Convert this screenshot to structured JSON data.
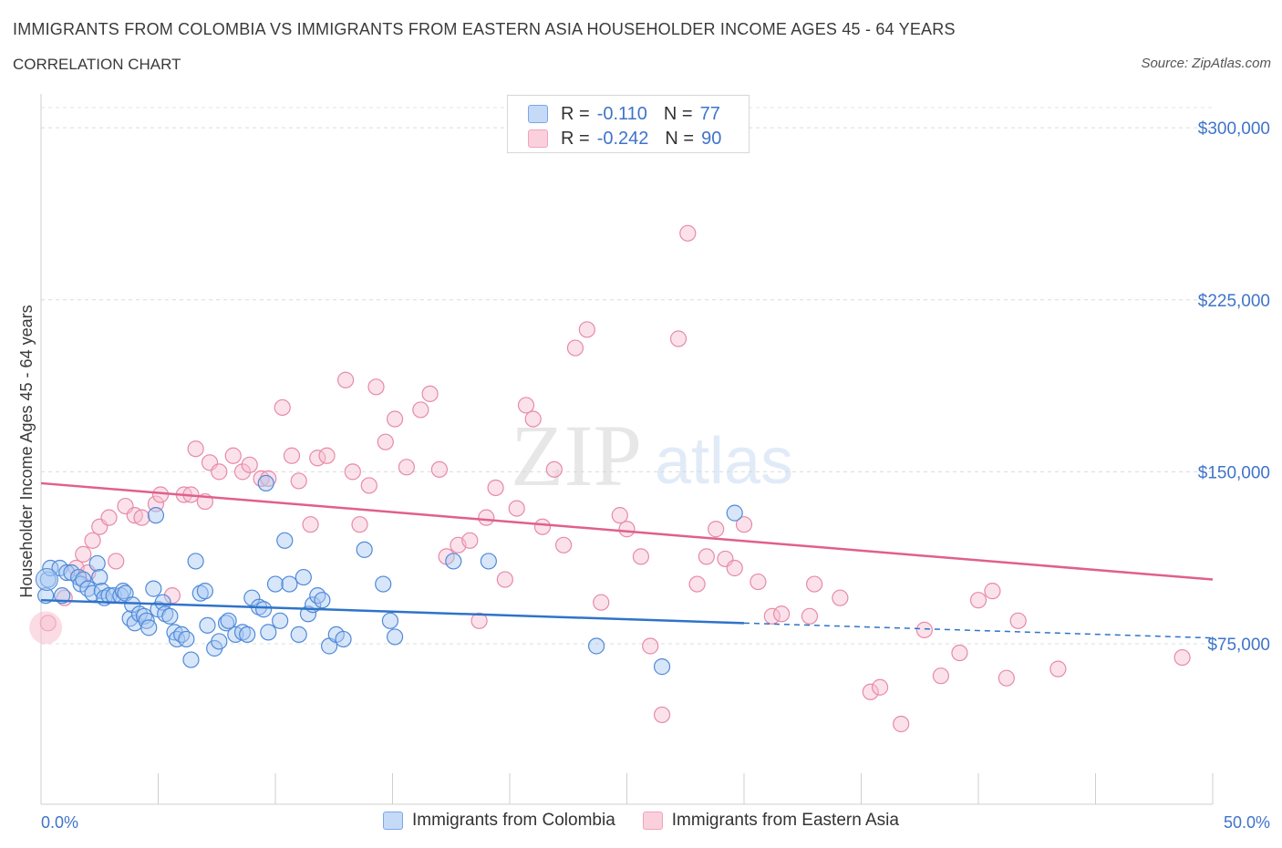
{
  "header": {
    "title": "IMMIGRANTS FROM COLOMBIA VS IMMIGRANTS FROM EASTERN ASIA HOUSEHOLDER INCOME AGES 45 - 64 YEARS",
    "subtitle": "CORRELATION CHART",
    "source": "Source: ZipAtlas.com"
  },
  "watermark": {
    "zip": "ZIP",
    "atlas": "atlas"
  },
  "legend": {
    "rows": [
      {
        "r_label": "R =",
        "r_value": "-0.110",
        "n_label": "N =",
        "n_value": "77",
        "color": "#7aa7e8"
      },
      {
        "r_label": "R =",
        "r_value": "-0.242",
        "n_label": "N =",
        "n_value": "90",
        "color": "#f0a3bb"
      }
    ]
  },
  "bottom_legend": {
    "items": [
      {
        "label": "Immigrants from Colombia"
      },
      {
        "label": "Immigrants from Eastern Asia"
      }
    ]
  },
  "chart_data": {
    "type": "scatter",
    "xlabel": "",
    "ylabel": "Householder Income Ages 45 - 64 years",
    "x_tick_labels": [
      "0.0%",
      "50.0%"
    ],
    "y_tick_labels": [
      "$75,000",
      "$150,000",
      "$225,000",
      "$300,000"
    ],
    "y_ticks": [
      75000,
      150000,
      225000,
      300000
    ],
    "xlim": [
      0,
      50
    ],
    "ylim": [
      5000,
      310000
    ],
    "grid": true,
    "colors": {
      "colombia": "#5b93e0",
      "eastern_asia": "#ec8aa8",
      "colombia_line": "#2f73c9",
      "eastern_asia_line": "#e0608a"
    },
    "series": [
      {
        "name": "Immigrants from Colombia",
        "trend": {
          "x0": 0,
          "y0": 94000,
          "x1": 30,
          "y1": 84000,
          "dashed_to_x": 50,
          "dashed_to_y": 77500
        },
        "points": [
          [
            0.3,
            103
          ],
          [
            0.4,
            108
          ],
          [
            0.8,
            108
          ],
          [
            0.9,
            96
          ],
          [
            1.1,
            106
          ],
          [
            1.3,
            106
          ],
          [
            1.6,
            104
          ],
          [
            1.7,
            101
          ],
          [
            1.8,
            103
          ],
          [
            2.0,
            99
          ],
          [
            2.2,
            97
          ],
          [
            2.4,
            110
          ],
          [
            2.5,
            104
          ],
          [
            2.6,
            98
          ],
          [
            2.7,
            95
          ],
          [
            2.9,
            96
          ],
          [
            3.1,
            96
          ],
          [
            3.4,
            96
          ],
          [
            3.5,
            98
          ],
          [
            3.6,
            97
          ],
          [
            3.8,
            86
          ],
          [
            3.9,
            92
          ],
          [
            4.0,
            84
          ],
          [
            4.2,
            88
          ],
          [
            4.4,
            87
          ],
          [
            4.5,
            85
          ],
          [
            4.6,
            82
          ],
          [
            4.8,
            99
          ],
          [
            4.9,
            131
          ],
          [
            5.0,
            90
          ],
          [
            5.2,
            93
          ],
          [
            5.3,
            88
          ],
          [
            5.5,
            87
          ],
          [
            5.7,
            80
          ],
          [
            5.8,
            77
          ],
          [
            6.0,
            79
          ],
          [
            6.2,
            77
          ],
          [
            6.4,
            68
          ],
          [
            6.6,
            111
          ],
          [
            6.8,
            97
          ],
          [
            7.0,
            98
          ],
          [
            7.1,
            83
          ],
          [
            7.4,
            73
          ],
          [
            7.6,
            76
          ],
          [
            7.9,
            84
          ],
          [
            8.0,
            85
          ],
          [
            8.3,
            79
          ],
          [
            8.6,
            80
          ],
          [
            8.8,
            79
          ],
          [
            9.0,
            95
          ],
          [
            9.3,
            91
          ],
          [
            9.5,
            90
          ],
          [
            9.6,
            145
          ],
          [
            9.7,
            80
          ],
          [
            10.0,
            101
          ],
          [
            10.2,
            85
          ],
          [
            10.4,
            120
          ],
          [
            10.6,
            101
          ],
          [
            11.0,
            79
          ],
          [
            11.2,
            104
          ],
          [
            11.4,
            88
          ],
          [
            11.6,
            92
          ],
          [
            11.8,
            96
          ],
          [
            12.0,
            94
          ],
          [
            12.3,
            74
          ],
          [
            12.6,
            79
          ],
          [
            12.9,
            77
          ],
          [
            13.8,
            116
          ],
          [
            14.6,
            101
          ],
          [
            14.9,
            85
          ],
          [
            15.1,
            78
          ],
          [
            17.6,
            111
          ],
          [
            19.1,
            111
          ],
          [
            23.7,
            74
          ],
          [
            26.5,
            65
          ],
          [
            29.6,
            132
          ],
          [
            0.2,
            96
          ]
        ]
      },
      {
        "name": "Immigrants from Eastern Asia",
        "trend": {
          "x0": 0,
          "y0": 145000,
          "x1": 50,
          "y1": 103000
        },
        "points": [
          [
            0.3,
            84
          ],
          [
            1.0,
            95
          ],
          [
            1.5,
            108
          ],
          [
            1.8,
            114
          ],
          [
            2.0,
            106
          ],
          [
            2.2,
            120
          ],
          [
            2.5,
            126
          ],
          [
            2.9,
            130
          ],
          [
            3.2,
            111
          ],
          [
            3.6,
            135
          ],
          [
            4.0,
            131
          ],
          [
            4.3,
            130
          ],
          [
            4.9,
            136
          ],
          [
            5.1,
            140
          ],
          [
            5.6,
            96
          ],
          [
            6.1,
            140
          ],
          [
            6.4,
            140
          ],
          [
            6.6,
            160
          ],
          [
            7.0,
            137
          ],
          [
            7.2,
            154
          ],
          [
            7.6,
            150
          ],
          [
            8.2,
            157
          ],
          [
            8.6,
            150
          ],
          [
            8.9,
            153
          ],
          [
            9.4,
            147
          ],
          [
            9.7,
            147
          ],
          [
            10.3,
            178
          ],
          [
            10.7,
            157
          ],
          [
            11.0,
            146
          ],
          [
            11.5,
            127
          ],
          [
            11.8,
            156
          ],
          [
            12.2,
            157
          ],
          [
            13.0,
            190
          ],
          [
            13.3,
            150
          ],
          [
            13.6,
            127
          ],
          [
            14.0,
            144
          ],
          [
            14.3,
            187
          ],
          [
            14.7,
            163
          ],
          [
            15.1,
            173
          ],
          [
            15.6,
            152
          ],
          [
            16.2,
            177
          ],
          [
            16.6,
            184
          ],
          [
            17.0,
            151
          ],
          [
            17.3,
            113
          ],
          [
            17.8,
            118
          ],
          [
            18.3,
            120
          ],
          [
            18.7,
            85
          ],
          [
            19.0,
            130
          ],
          [
            19.4,
            143
          ],
          [
            19.8,
            103
          ],
          [
            20.3,
            134
          ],
          [
            20.7,
            179
          ],
          [
            21.0,
            173
          ],
          [
            21.4,
            126
          ],
          [
            21.9,
            151
          ],
          [
            22.3,
            118
          ],
          [
            22.8,
            204
          ],
          [
            23.3,
            212
          ],
          [
            23.9,
            93
          ],
          [
            24.7,
            131
          ],
          [
            25.0,
            125
          ],
          [
            25.6,
            113
          ],
          [
            26.0,
            74
          ],
          [
            26.5,
            44
          ],
          [
            27.2,
            208
          ],
          [
            27.6,
            254
          ],
          [
            28.0,
            101
          ],
          [
            28.4,
            113
          ],
          [
            28.8,
            125
          ],
          [
            29.2,
            112
          ],
          [
            29.6,
            108
          ],
          [
            30.0,
            127
          ],
          [
            30.6,
            102
          ],
          [
            31.2,
            87
          ],
          [
            31.6,
            88
          ],
          [
            32.8,
            87
          ],
          [
            33.0,
            101
          ],
          [
            34.1,
            95
          ],
          [
            35.4,
            54
          ],
          [
            35.8,
            56
          ],
          [
            36.7,
            40
          ],
          [
            37.7,
            81
          ],
          [
            38.4,
            61
          ],
          [
            39.2,
            71
          ],
          [
            40.0,
            94
          ],
          [
            40.6,
            98
          ],
          [
            41.2,
            60
          ],
          [
            41.7,
            85
          ],
          [
            43.4,
            64
          ],
          [
            48.7,
            69
          ]
        ]
      }
    ],
    "point_value_unit": "thousands of USD"
  }
}
